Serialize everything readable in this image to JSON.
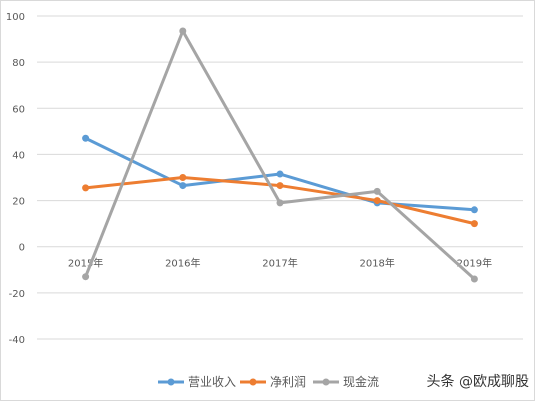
{
  "chart_data": {
    "type": "line",
    "categories": [
      "2015年",
      "2016年",
      "2017年",
      "2018年",
      "2019年"
    ],
    "ylim": [
      -40,
      100
    ],
    "yticks": [
      -40,
      -20,
      0,
      20,
      40,
      60,
      80,
      100
    ],
    "ytick_labels": [
      "-40",
      "-20",
      "0",
      "20",
      "40",
      "60",
      "80",
      "100"
    ],
    "grid": true,
    "legend_position": "bottom",
    "series": [
      {
        "name": "营业收入",
        "color": "#5b9bd5",
        "values": [
          47,
          26.5,
          31.5,
          19,
          16
        ]
      },
      {
        "name": "净利润",
        "color": "#ed7d31",
        "values": [
          25.5,
          30,
          26.5,
          20,
          10
        ]
      },
      {
        "name": "现金流",
        "color": "#a5a5a5",
        "values": [
          -13,
          93.5,
          19,
          24,
          -14
        ]
      }
    ]
  },
  "watermark": "头条 @欧成聊股"
}
